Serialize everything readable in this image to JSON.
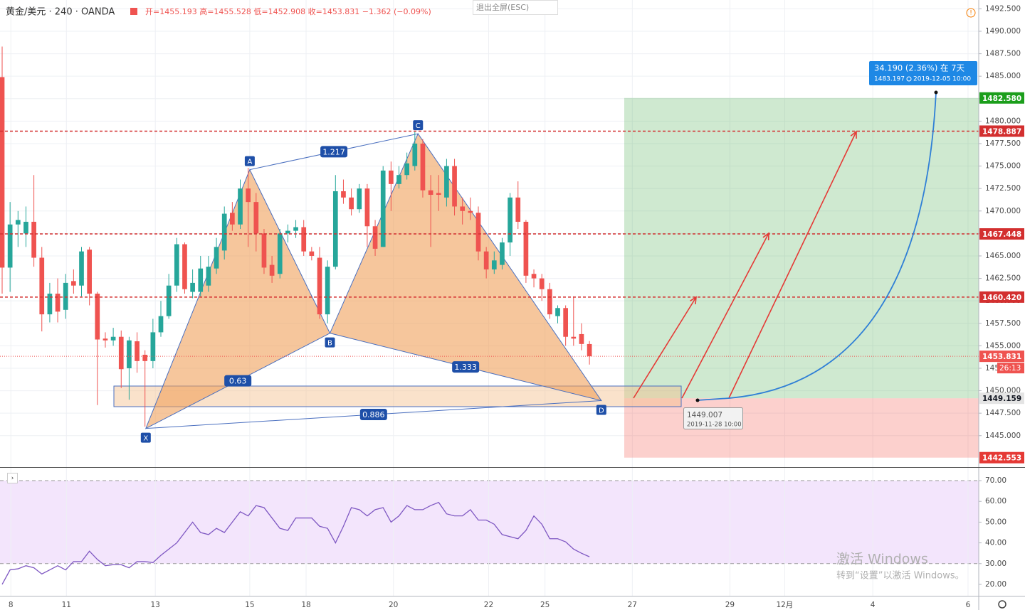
{
  "header": {
    "symbol": "黄金/美元 · 240 · OANDA",
    "ohlc": "开=1455.193 高=1455.528 低=1452.908 收=1453.831 −1.362 (−0.09%)",
    "exit_fullscreen": "退出全屏(ESC)"
  },
  "watermark": {
    "title": "激活 Windows",
    "subtitle": "转到“设置”以激活 Windows。"
  },
  "chart_data": [
    {
      "type": "candlestick",
      "up_color": "#26a69a",
      "down_color": "#ef5350",
      "x": [
        0,
        1,
        2,
        3,
        4,
        5,
        6,
        7,
        8,
        9,
        10,
        11,
        12,
        13,
        14,
        15,
        16,
        17,
        18,
        19,
        20,
        21,
        22,
        23,
        24,
        25,
        26,
        27,
        28,
        29,
        30,
        31,
        32,
        33,
        34,
        35,
        36,
        37,
        38,
        39,
        40,
        41,
        42,
        43,
        44,
        45,
        46,
        47,
        48,
        49,
        50,
        51,
        52,
        53,
        54,
        55,
        56,
        57,
        58,
        59,
        60,
        61,
        62,
        63,
        64,
        65,
        66,
        67,
        68,
        69,
        70,
        71,
        72,
        73,
        74
      ],
      "open": [
        1484.9,
        1463.7,
        1468.5,
        1467.5,
        1468.8,
        1464.8,
        1458.5,
        1460.8,
        1459,
        1462.2,
        1461.7,
        1465.7,
        1460.8,
        1455.8,
        1455.6,
        1456,
        1452.5,
        1455.5,
        1454,
        1453.3,
        1456.5,
        1458.3,
        1461.7,
        1466.3,
        1461,
        1461,
        1461.7,
        1463.6,
        1465.6,
        1469.8,
        1468.5,
        1472.5,
        1471,
        1467.5,
        1464,
        1463,
        1467.5,
        1467.8,
        1468.2,
        1465.5,
        1464.8,
        1458.5,
        1463.8,
        1472.2,
        1471.5,
        1470.2,
        1472.5,
        1468.3,
        1466,
        1474.5,
        1473,
        1474,
        1475,
        1477.5,
        1472.3,
        1472,
        1471.5,
        1475,
        1470.5,
        1470,
        1469.8,
        1465.5,
        1463.5,
        1464,
        1466.5,
        1471.5,
        1468.8,
        1463,
        1462.5,
        1461.3,
        1458.3,
        1459.2,
        1456,
        1456.3,
        1455.193
      ],
      "high": [
        1488.3,
        1471,
        1470,
        1470.5,
        1474,
        1466,
        1462,
        1462.5,
        1463,
        1463.5,
        1466,
        1466,
        1461,
        1456.5,
        1457,
        1456.7,
        1456,
        1456.5,
        1454.5,
        1458,
        1460,
        1463,
        1467,
        1466.5,
        1463.5,
        1465,
        1465,
        1467,
        1470.5,
        1471,
        1473.5,
        1474.8,
        1472,
        1468,
        1465,
        1468,
        1468.5,
        1469,
        1469,
        1466,
        1466,
        1464.5,
        1474,
        1473.5,
        1472.5,
        1473,
        1473,
        1469,
        1475,
        1475.5,
        1475,
        1476.5,
        1478.8,
        1478,
        1474,
        1474,
        1475.8,
        1475.8,
        1471.5,
        1471.5,
        1470.5,
        1466,
        1465.5,
        1467,
        1472,
        1473.3,
        1469,
        1463.5,
        1463,
        1462,
        1459.5,
        1459.5,
        1460.5,
        1457.5,
        1455.528
      ],
      "low": [
        1460.8,
        1461,
        1466,
        1466,
        1463.8,
        1456.6,
        1457.6,
        1457.6,
        1458,
        1460.8,
        1460.5,
        1459.5,
        1448.4,
        1454.8,
        1455,
        1450.3,
        1449,
        1452,
        1446,
        1452.5,
        1456,
        1458,
        1461,
        1460.8,
        1460.3,
        1460.5,
        1461,
        1463,
        1464.6,
        1467.8,
        1468,
        1466,
        1465.5,
        1463,
        1462,
        1462.5,
        1466.5,
        1467,
        1465,
        1464.5,
        1458,
        1457.5,
        1463.5,
        1470.8,
        1469.5,
        1469.8,
        1466,
        1465,
        1466,
        1470,
        1472.5,
        1473.5,
        1474.5,
        1471.5,
        1466,
        1470,
        1470.5,
        1469.5,
        1468.5,
        1469,
        1464.5,
        1462.5,
        1463,
        1463.5,
        1465,
        1468,
        1462,
        1461.5,
        1460,
        1458,
        1457.5,
        1455,
        1455,
        1454.5,
        1452.908
      ],
      "close": [
        1463.7,
        1468.5,
        1469.0,
        1468.8,
        1464.8,
        1458.5,
        1460.8,
        1458.8,
        1462,
        1461.7,
        1465.5,
        1460.8,
        1455.7,
        1455.6,
        1456,
        1452.4,
        1455.6,
        1453.3,
        1453.3,
        1456.5,
        1458.3,
        1461.7,
        1466.3,
        1461.3,
        1462,
        1463.6,
        1463.8,
        1466,
        1469.7,
        1468.5,
        1472.5,
        1471,
        1467.5,
        1463.7,
        1462.8,
        1467.5,
        1467.8,
        1468.2,
        1465.5,
        1465,
        1458.5,
        1463.8,
        1472.2,
        1471.5,
        1470.2,
        1472.5,
        1468.3,
        1465.8,
        1474.5,
        1473,
        1474,
        1475.3,
        1477.5,
        1472.3,
        1471.8,
        1471.8,
        1475,
        1470.5,
        1470,
        1469.8,
        1465.5,
        1463.5,
        1464.5,
        1466.5,
        1471.5,
        1468.8,
        1462.8,
        1462.5,
        1461.3,
        1458.5,
        1459.2,
        1456,
        1455.8,
        1455.2,
        1453.831
      ],
      "xlim": [
        -0.27,
        123.05
      ],
      "xticks": [
        {
          "value": 1.1,
          "label": "8"
        },
        {
          "value": 8.1,
          "label": "11"
        },
        {
          "value": 19.3,
          "label": "13"
        },
        {
          "value": 31.2,
          "label": "15"
        },
        {
          "value": 38.3,
          "label": "18"
        },
        {
          "value": 49.3,
          "label": "20"
        },
        {
          "value": 61.3,
          "label": "22"
        },
        {
          "value": 68.4,
          "label": "25"
        },
        {
          "value": 79.4,
          "label": "27"
        },
        {
          "value": 91.7,
          "label": "29"
        },
        {
          "value": 98.6,
          "label": "12月"
        },
        {
          "value": 109.7,
          "label": "4"
        },
        {
          "value": 121.7,
          "label": "6"
        }
      ],
      "ylim": [
        1441.5,
        1493.48
      ],
      "yticks": [
        {
          "value": 1445,
          "label": "1445.000"
        },
        {
          "value": 1447.5,
          "label": "1447.500"
        },
        {
          "value": 1450,
          "label": "1450.000"
        },
        {
          "value": 1452.5,
          "label": "1452.500"
        },
        {
          "value": 1455,
          "label": "1455.000"
        },
        {
          "value": 1457.5,
          "label": "1457.500"
        },
        {
          "value": 1460,
          "label": "1460.000"
        },
        {
          "value": 1462.5,
          "label": "1462.500"
        },
        {
          "value": 1465,
          "label": "1465.000"
        },
        {
          "value": 1467.5,
          "label": "1467.500"
        },
        {
          "value": 1470,
          "label": "1470.000"
        },
        {
          "value": 1472.5,
          "label": "1472.500"
        },
        {
          "value": 1475,
          "label": "1475.000"
        },
        {
          "value": 1477.5,
          "label": "1477.500"
        },
        {
          "value": 1480,
          "label": "1480.000"
        },
        {
          "value": 1482.5,
          "label": "1482.500"
        },
        {
          "value": 1485,
          "label": "1485.000"
        },
        {
          "value": 1487.5,
          "label": "1487.500"
        },
        {
          "value": 1490,
          "label": "1490.000"
        },
        {
          "value": 1492.5,
          "label": "1492.500"
        }
      ],
      "grid": true,
      "levels": [
        {
          "value": 1478.887,
          "label": "1478.887"
        },
        {
          "value": 1467.448,
          "label": "1467.448"
        },
        {
          "value": 1460.42,
          "label": "1460.420"
        }
      ],
      "last_price": {
        "value": 1453.831,
        "label": "1453.831",
        "countdown": "26:13"
      },
      "position": {
        "target": {
          "value": 1482.58,
          "label": "1482.580"
        },
        "entry": {
          "value": 1449.159,
          "label": "1449.159"
        },
        "stop": {
          "value": 1442.553,
          "label": "1442.553"
        }
      },
      "pattern": {
        "points": [
          {
            "label": "X",
            "x": 18.1,
            "y": 1445.8
          },
          {
            "label": "A",
            "x": 31.2,
            "y": 1474.6
          },
          {
            "label": "B",
            "x": 41.3,
            "y": 1456.4
          },
          {
            "label": "C",
            "x": 52.4,
            "y": 1478.6
          },
          {
            "label": "D",
            "x": 75.5,
            "y": 1448.9
          }
        ],
        "ratios": [
          0.63,
          1.217,
          1.333,
          0.886
        ]
      },
      "projection": {
        "text": "34.190 (2.36%) 在 7天",
        "price": "1483.197",
        "date": "2019-12-05 10:00",
        "start_price": "1449.007",
        "start_date": "2019-11-28 10:00"
      }
    },
    {
      "type": "line",
      "color": "#7e57c2",
      "x": [
        0,
        1,
        2,
        3,
        4,
        5,
        6,
        7,
        8,
        9,
        10,
        11,
        12,
        13,
        14,
        15,
        16,
        17,
        18,
        19,
        20,
        21,
        22,
        23,
        24,
        25,
        26,
        27,
        28,
        29,
        30,
        31,
        32,
        33,
        34,
        35,
        36,
        37,
        38,
        39,
        40,
        41,
        42,
        43,
        44,
        45,
        46,
        47,
        48,
        49,
        50,
        51,
        52,
        53,
        54,
        55,
        56,
        57,
        58,
        59,
        60,
        61,
        62,
        63,
        64,
        65,
        66,
        67,
        68,
        69,
        70,
        71,
        72,
        73,
        74
      ],
      "values": [
        20,
        27,
        27.5,
        29,
        28,
        25,
        27,
        29,
        27,
        31,
        31,
        36,
        32,
        29,
        29.5,
        29.5,
        28,
        31,
        31,
        30.5,
        34,
        37,
        40,
        45,
        50,
        45,
        44,
        47,
        45,
        50,
        55,
        53,
        58,
        57,
        52,
        47,
        46,
        52,
        52,
        52,
        48,
        47,
        40,
        48,
        57,
        56,
        53,
        56,
        57,
        50,
        53,
        58,
        56,
        56,
        58,
        59.5,
        54,
        53,
        53,
        56,
        51,
        51,
        49,
        44,
        43,
        42,
        46,
        53,
        49,
        42,
        42,
        40.5,
        37,
        35,
        33.3
      ],
      "ylim": [
        14.5,
        75.5
      ],
      "yticks": [
        {
          "value": 20,
          "label": "20.00"
        },
        {
          "value": 30,
          "label": "30.00"
        },
        {
          "value": 40,
          "label": "40.00"
        },
        {
          "value": 50,
          "label": "50.00"
        },
        {
          "value": 60,
          "label": "60.00"
        },
        {
          "value": 70,
          "label": "70.00"
        }
      ],
      "band": [
        30,
        70
      ]
    }
  ]
}
